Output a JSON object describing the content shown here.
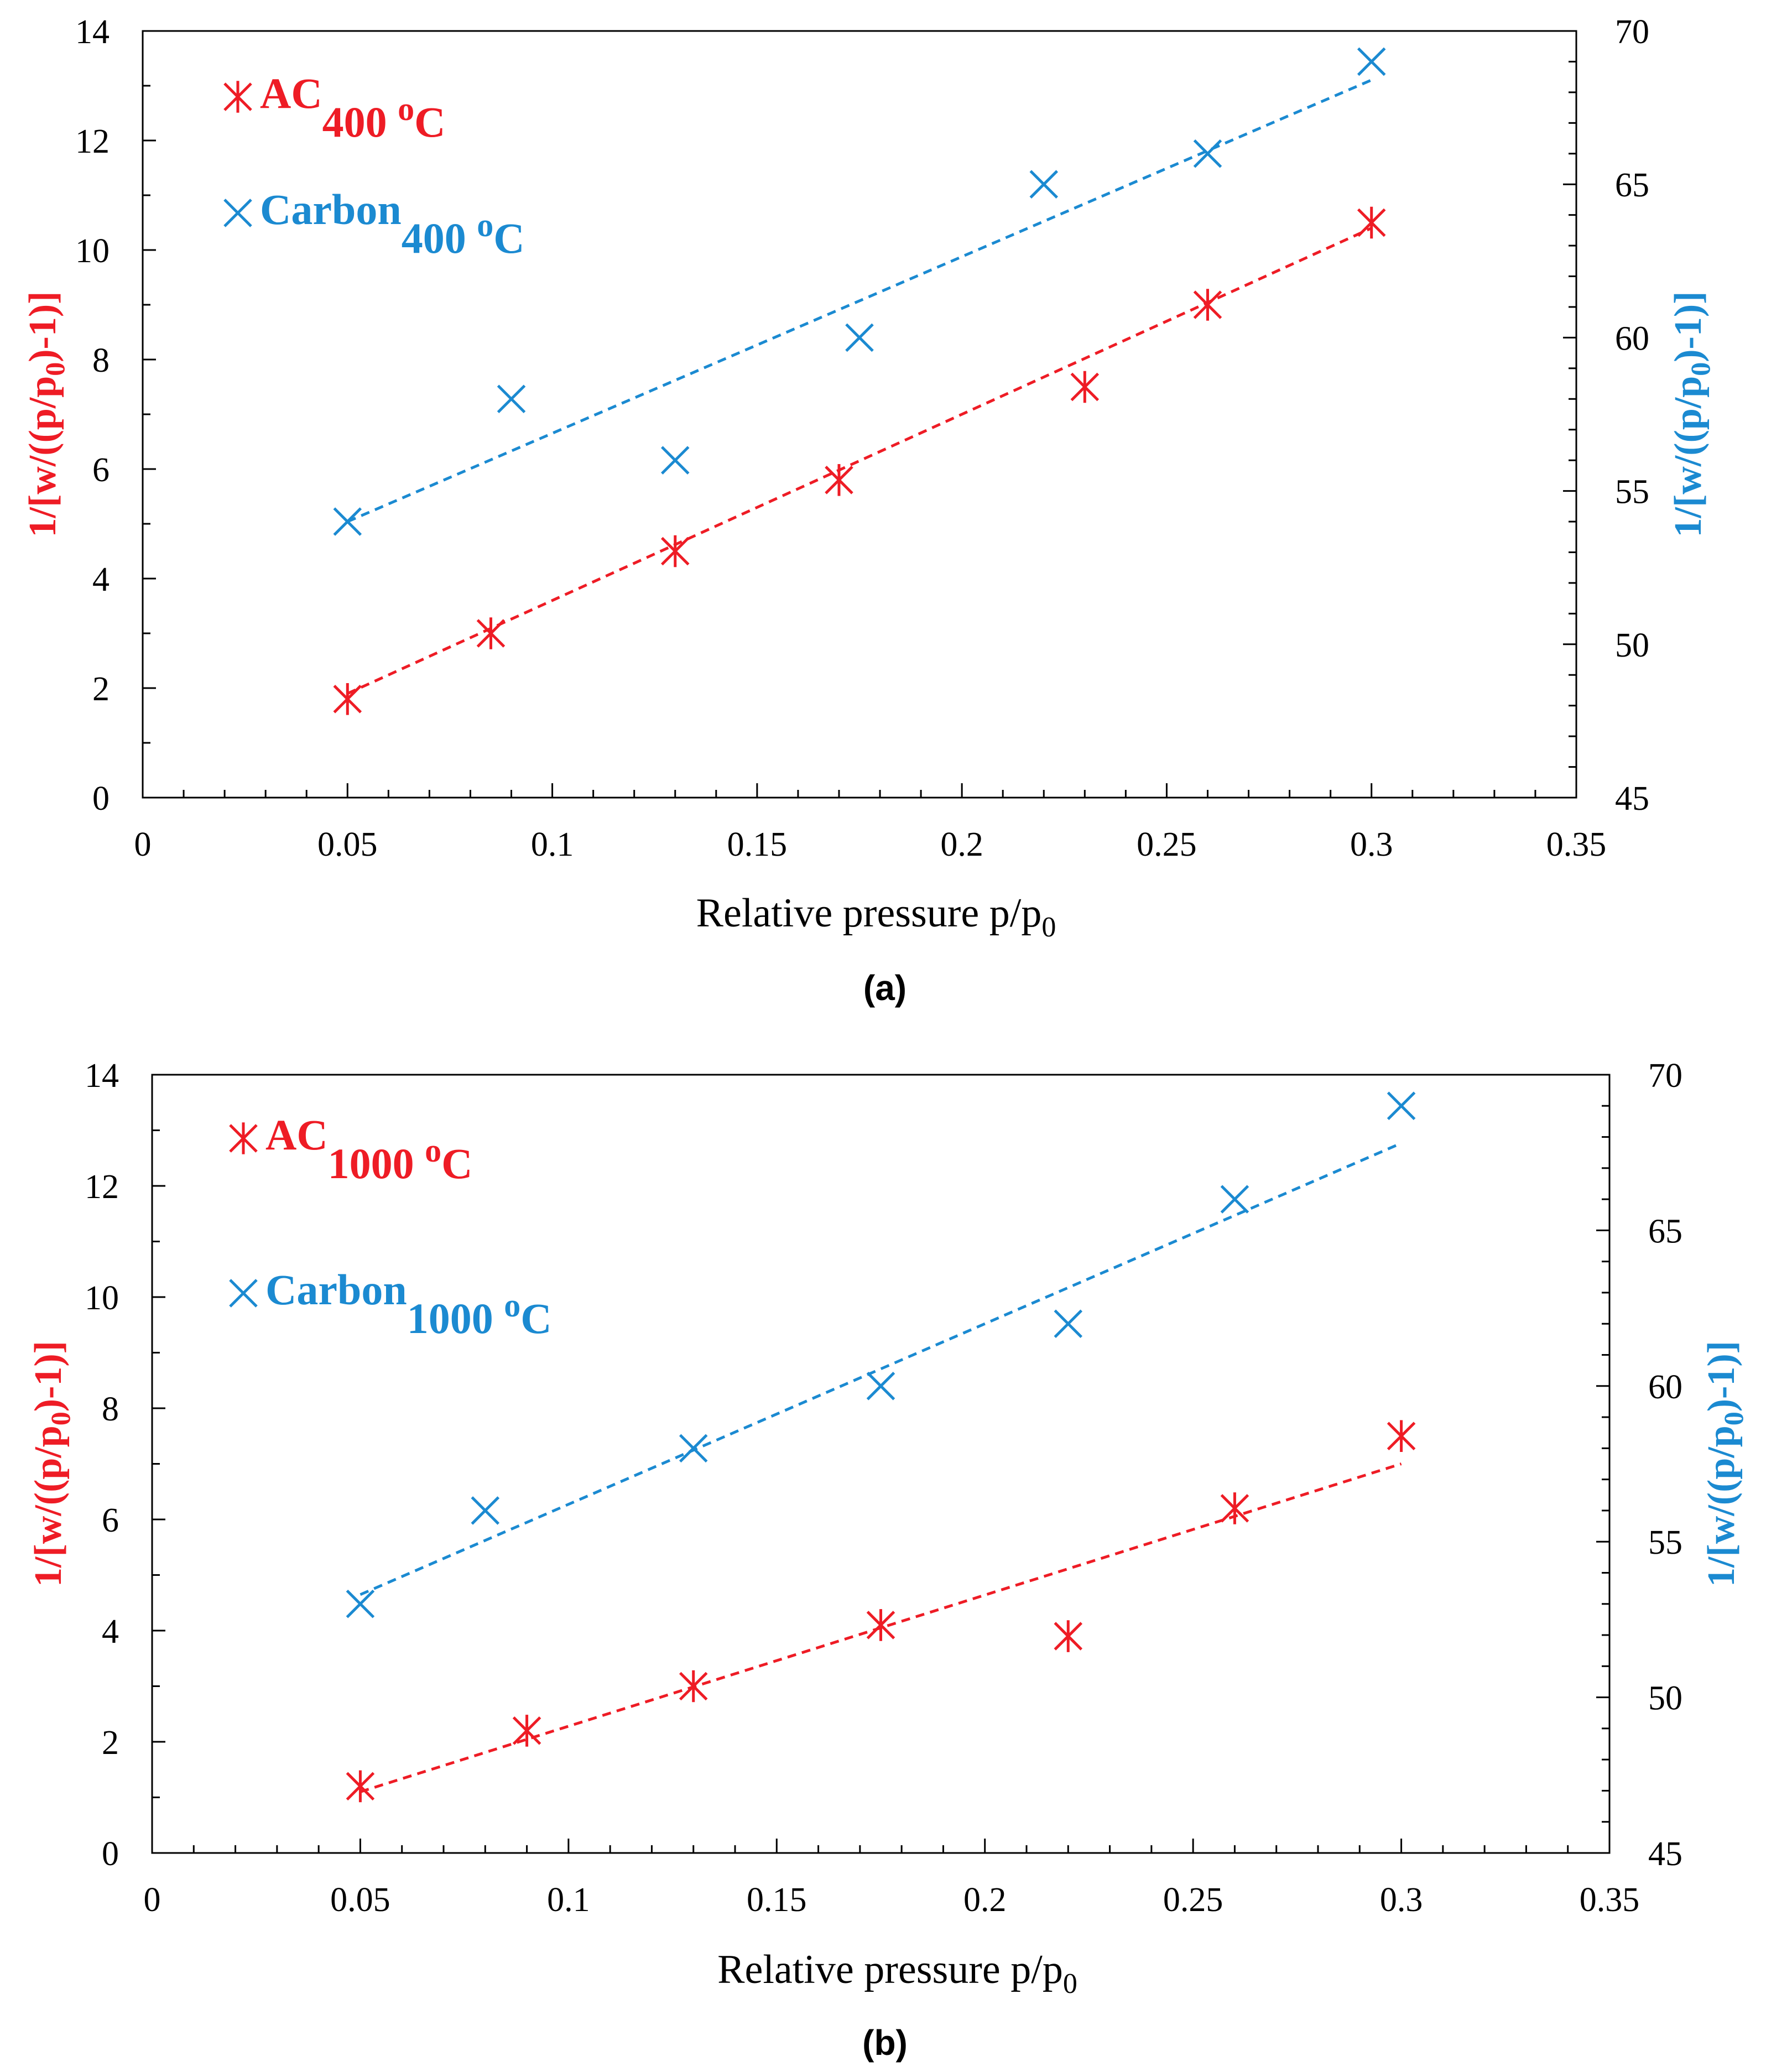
{
  "colors": {
    "ac": "#ee1c25",
    "carbon": "#1b8ad1",
    "axis": "#000000"
  },
  "chart_data": [
    {
      "type": "scatter",
      "caption": "(a)",
      "xlabel": "Relative pressure p/p",
      "xlabel_sub": "0",
      "ylabel_left": {
        "pre": "1/[w/((p/p",
        "sub": "0",
        "post": ")-1)]"
      },
      "ylabel_right": {
        "pre": "1/[w/((p/p",
        "sub": "0",
        "post": ")-1)]"
      },
      "xlim": [
        0,
        0.35
      ],
      "xticks": [
        "0",
        "0.05",
        "0.1",
        "0.15",
        "0.2",
        "0.25",
        "0.3",
        "0.35"
      ],
      "ylim_left": [
        0,
        14
      ],
      "yticks_left": [
        "0",
        "2",
        "4",
        "6",
        "8",
        "10",
        "12",
        "14"
      ],
      "ylim_right": [
        45,
        70
      ],
      "yticks_right": [
        "45",
        "50",
        "55",
        "60",
        "65",
        "70"
      ],
      "legend_placement": "top-left",
      "series": [
        {
          "name": "AC",
          "name_sub": "400 ",
          "name_sup": "o",
          "name_end": "C",
          "marker": "asterisk",
          "axis": "left",
          "color": "#ee1c25",
          "x": [
            0.05,
            0.085,
            0.13,
            0.17,
            0.23,
            0.26,
            0.3
          ],
          "y": [
            1.8,
            3.0,
            4.5,
            5.8,
            7.5,
            9.0,
            10.5
          ],
          "trend": [
            [
              0.05,
              1.9
            ],
            [
              0.3,
              10.4
            ]
          ]
        },
        {
          "name": "Carbon",
          "name_sub": "400 ",
          "name_sup": "o",
          "name_end": "C",
          "marker": "x",
          "axis": "right",
          "color": "#1b8ad1",
          "x": [
            0.05,
            0.09,
            0.13,
            0.175,
            0.22,
            0.26,
            0.3
          ],
          "y": [
            54,
            58,
            56,
            60,
            65,
            66,
            69
          ],
          "trend": [
            [
              0.05,
              54
            ],
            [
              0.3,
              68.4
            ]
          ]
        }
      ]
    },
    {
      "type": "scatter",
      "caption": "(b)",
      "xlabel": "Relative pressure p/p",
      "xlabel_sub": "0",
      "ylabel_left": {
        "pre": "1/[w/((p/p",
        "sub": "0",
        "post": ")-1)]"
      },
      "ylabel_right": {
        "pre": "1/[w/((p/p",
        "sub": "0",
        "post": ")-1)]"
      },
      "xlim": [
        0,
        0.35
      ],
      "xticks": [
        "0",
        "0.05",
        "0.1",
        "0.15",
        "0.2",
        "0.25",
        "0.3",
        "0.35"
      ],
      "ylim_left": [
        0,
        14
      ],
      "yticks_left": [
        "0",
        "2",
        "4",
        "6",
        "8",
        "10",
        "12",
        "14"
      ],
      "ylim_right": [
        45,
        70
      ],
      "yticks_right": [
        "45",
        "50",
        "55",
        "60",
        "65",
        "70"
      ],
      "legend_placement": "top-left",
      "series": [
        {
          "name": "AC",
          "name_sub": "1000 ",
          "name_sup": "o",
          "name_end": "C",
          "marker": "asterisk",
          "axis": "left",
          "color": "#ee1c25",
          "x": [
            0.05,
            0.09,
            0.13,
            0.175,
            0.22,
            0.26,
            0.3
          ],
          "y": [
            1.2,
            2.2,
            3.0,
            4.1,
            3.9,
            6.2,
            7.5
          ],
          "trend": [
            [
              0.05,
              1.1
            ],
            [
              0.3,
              7.0
            ]
          ]
        },
        {
          "name": "Carbon",
          "name_sub": "1000 ",
          "name_sup": "o",
          "name_end": "C",
          "marker": "x",
          "axis": "right",
          "color": "#1b8ad1",
          "x": [
            0.05,
            0.08,
            0.13,
            0.175,
            0.22,
            0.26,
            0.3
          ],
          "y": [
            53,
            56,
            58,
            60,
            62,
            66,
            69
          ],
          "trend": [
            [
              0.05,
              53.3
            ],
            [
              0.3,
              67.8
            ]
          ]
        }
      ]
    }
  ]
}
